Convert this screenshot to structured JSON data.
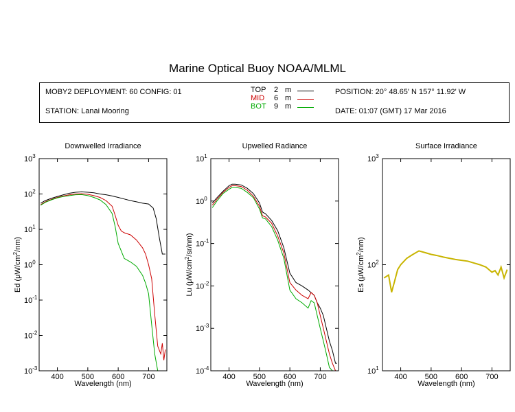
{
  "title": "Marine Optical Buoy NOAA/MLML",
  "info": {
    "deployment": "MOBY2 DEPLOYMENT: 60 CONFIG: 01",
    "station": "STATION: Lanai Mooring",
    "position": "POSITION: 20° 48.65' N   157° 11.92' W",
    "date": "DATE: 01:07 (GMT) 17 Mar 2016"
  },
  "legend": [
    {
      "name": "TOP",
      "depth": "2",
      "unit": "m",
      "color": "#000000"
    },
    {
      "name": "MID",
      "depth": "6",
      "unit": "m",
      "color": "#cc0000"
    },
    {
      "name": "BOT",
      "depth": "9",
      "unit": "m",
      "color": "#00aa00"
    }
  ],
  "chart_data": [
    {
      "type": "line",
      "title": "Downwelled Irradiance",
      "xlabel": "Wavelength (nm)",
      "ylabel_main": "Ed",
      "ylabel_unit_a": "(μW/cm",
      "ylabel_unit_sup": "2",
      "ylabel_unit_b": "/nm)",
      "xlim": [
        340,
        760
      ],
      "ylim": [
        0.001,
        1000
      ],
      "yscale": "log",
      "xticks": [
        400,
        500,
        600,
        700
      ],
      "yticks": [
        {
          "value": 0.001,
          "base": "10",
          "exp": "-3"
        },
        {
          "value": 0.01,
          "base": "10",
          "exp": "-2"
        },
        {
          "value": 0.1,
          "base": "10",
          "exp": "-1"
        },
        {
          "value": 1,
          "base": "10",
          "exp": "0"
        },
        {
          "value": 10,
          "base": "10",
          "exp": "1"
        },
        {
          "value": 100,
          "base": "10",
          "exp": "2"
        },
        {
          "value": 1000,
          "base": "10",
          "exp": "3"
        }
      ],
      "series": [
        {
          "name": "TOP",
          "color": "#000000",
          "x": [
            345,
            360,
            380,
            400,
            420,
            440,
            460,
            480,
            500,
            520,
            540,
            560,
            580,
            600,
            620,
            640,
            660,
            680,
            700,
            715,
            725,
            735,
            745,
            755
          ],
          "y": [
            55,
            65,
            75,
            85,
            95,
            105,
            112,
            115,
            112,
            108,
            100,
            95,
            88,
            80,
            72,
            65,
            60,
            55,
            52,
            40,
            20,
            6,
            2,
            2
          ]
        },
        {
          "name": "MID",
          "color": "#cc0000",
          "x": [
            345,
            360,
            380,
            400,
            420,
            440,
            460,
            480,
            500,
            520,
            540,
            560,
            580,
            590,
            600,
            610,
            620,
            640,
            660,
            680,
            690,
            700,
            710,
            720,
            730,
            740,
            745,
            750,
            755
          ],
          "y": [
            50,
            60,
            70,
            80,
            88,
            95,
            100,
            102,
            98,
            90,
            80,
            65,
            45,
            25,
            13,
            9,
            8,
            7,
            5,
            3,
            2,
            1,
            0.4,
            0.04,
            0.005,
            0.003,
            0.006,
            0.002,
            0.004
          ]
        },
        {
          "name": "BOT",
          "color": "#00aa00",
          "x": [
            345,
            360,
            380,
            400,
            420,
            440,
            460,
            480,
            500,
            520,
            540,
            560,
            580,
            590,
            600,
            620,
            640,
            660,
            680,
            690,
            700,
            710,
            720,
            730,
            740
          ],
          "y": [
            48,
            58,
            68,
            78,
            85,
            90,
            95,
            96,
            90,
            80,
            68,
            50,
            28,
            12,
            4,
            1.5,
            1.2,
            0.9,
            0.5,
            0.3,
            0.15,
            0.02,
            0.003,
            0.001,
            0.001
          ]
        }
      ]
    },
    {
      "type": "line",
      "title": "Upwelled Radiance",
      "xlabel": "Wavelength (nm)",
      "ylabel_main": "Lu",
      "ylabel_unit_a": "(μW/cm",
      "ylabel_unit_sup": "2",
      "ylabel_unit_b": "/sr/nm)",
      "xlim": [
        340,
        760
      ],
      "ylim": [
        0.0001,
        10
      ],
      "yscale": "log",
      "xticks": [
        400,
        500,
        600,
        700
      ],
      "yticks": [
        {
          "value": 0.0001,
          "base": "10",
          "exp": "-4"
        },
        {
          "value": 0.001,
          "base": "10",
          "exp": "-3"
        },
        {
          "value": 0.01,
          "base": "10",
          "exp": "-2"
        },
        {
          "value": 0.1,
          "base": "10",
          "exp": "-1"
        },
        {
          "value": 1,
          "base": "10",
          "exp": "0"
        },
        {
          "value": 10,
          "base": "10",
          "exp": "1"
        }
      ],
      "series": [
        {
          "name": "TOP",
          "color": "#000000",
          "x": [
            345,
            360,
            380,
            400,
            410,
            420,
            440,
            460,
            480,
            500,
            510,
            520,
            540,
            560,
            580,
            600,
            620,
            640,
            660,
            680,
            690,
            700,
            710,
            720,
            730,
            740,
            750,
            755
          ],
          "y": [
            0.9,
            1.2,
            1.7,
            2.3,
            2.5,
            2.5,
            2.4,
            2.0,
            1.5,
            0.9,
            0.55,
            0.5,
            0.35,
            0.2,
            0.08,
            0.02,
            0.012,
            0.01,
            0.008,
            0.006,
            0.004,
            0.003,
            0.002,
            0.001,
            0.0005,
            0.0003,
            0.00015,
            0.00015
          ]
        },
        {
          "name": "MID",
          "color": "#cc0000",
          "x": [
            345,
            360,
            380,
            400,
            410,
            420,
            440,
            460,
            480,
            500,
            510,
            520,
            540,
            560,
            580,
            600,
            620,
            640,
            660,
            670,
            680,
            690,
            700,
            710,
            720,
            730,
            740,
            750
          ],
          "y": [
            0.8,
            1.1,
            1.6,
            2.1,
            2.3,
            2.3,
            2.2,
            1.8,
            1.3,
            0.75,
            0.45,
            0.42,
            0.3,
            0.15,
            0.06,
            0.012,
            0.008,
            0.006,
            0.005,
            0.007,
            0.006,
            0.004,
            0.002,
            0.001,
            0.0005,
            0.00025,
            0.00015,
            0.0001
          ]
        },
        {
          "name": "BOT",
          "color": "#00aa00",
          "x": [
            345,
            360,
            380,
            400,
            410,
            420,
            440,
            460,
            480,
            500,
            510,
            520,
            540,
            560,
            580,
            600,
            620,
            640,
            660,
            670,
            680,
            690,
            700,
            710,
            720,
            730,
            740
          ],
          "y": [
            0.7,
            1.0,
            1.5,
            1.9,
            2.1,
            2.1,
            2.0,
            1.6,
            1.2,
            0.65,
            0.4,
            0.38,
            0.25,
            0.12,
            0.045,
            0.008,
            0.005,
            0.004,
            0.003,
            0.0045,
            0.004,
            0.002,
            0.001,
            0.0005,
            0.00025,
            0.00012,
            0.0001
          ]
        }
      ]
    },
    {
      "type": "line",
      "title": "Surface Irradiance",
      "xlabel": "Wavelength (nm)",
      "ylabel_main": "Es",
      "ylabel_unit_a": "(μW/cm",
      "ylabel_unit_sup": "2",
      "ylabel_unit_b": "/nm)",
      "xlim": [
        340,
        760
      ],
      "ylim": [
        10,
        1000
      ],
      "yscale": "log",
      "xticks": [
        400,
        500,
        600,
        700
      ],
      "yticks": [
        {
          "value": 10,
          "base": "10",
          "exp": "1"
        },
        {
          "value": 100,
          "base": "10",
          "exp": "2"
        },
        {
          "value": 1000,
          "base": "10",
          "exp": "3"
        }
      ],
      "series": [
        {
          "name": "Es",
          "color": "#c8b400",
          "x": [
            345,
            360,
            370,
            380,
            390,
            400,
            420,
            440,
            460,
            480,
            500,
            520,
            540,
            560,
            580,
            600,
            620,
            640,
            660,
            680,
            690,
            700,
            710,
            720,
            730,
            740,
            750
          ],
          "y": [
            75,
            80,
            55,
            70,
            90,
            100,
            115,
            125,
            135,
            130,
            125,
            122,
            118,
            115,
            112,
            110,
            108,
            104,
            100,
            95,
            90,
            85,
            88,
            80,
            95,
            75,
            90
          ],
          "line_width": 2
        }
      ]
    }
  ]
}
